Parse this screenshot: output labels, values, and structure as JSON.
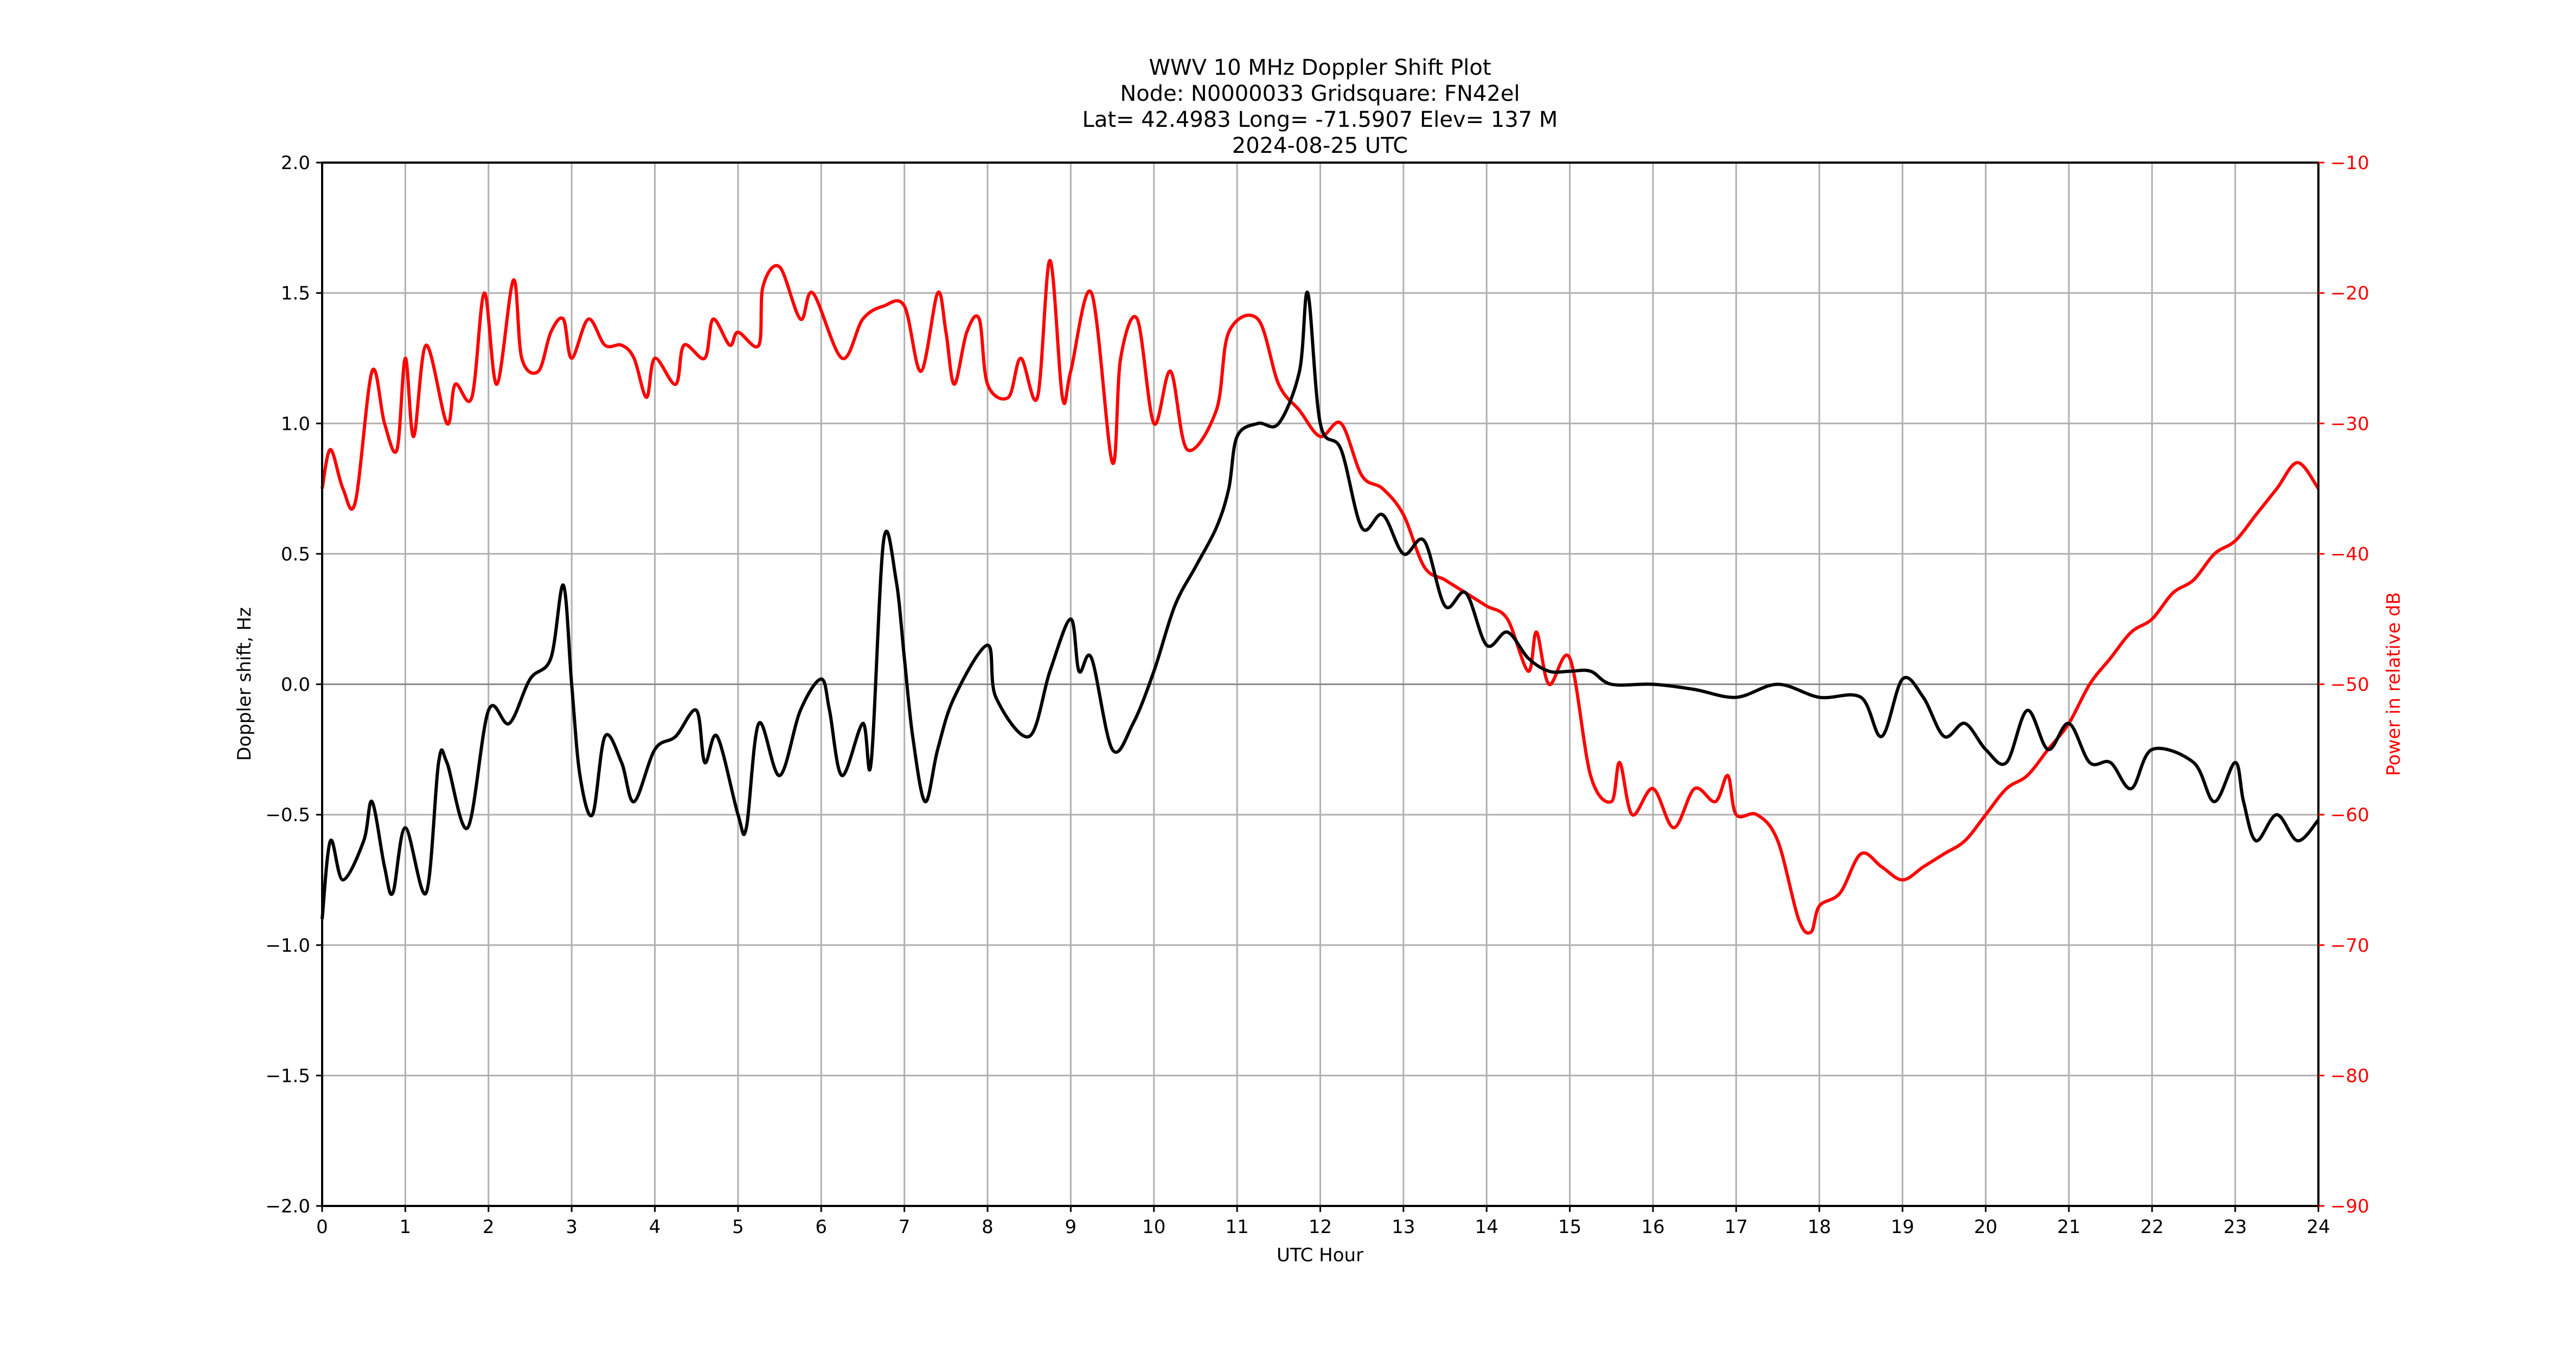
{
  "chart_data": {
    "type": "line",
    "title_lines": [
      "WWV 10 MHz Doppler Shift Plot",
      "Node:  N0000033     Gridsquare:  FN42el",
      "Lat= 42.4983    Long= -71.5907    Elev= 137 M",
      "2024-08-25  UTC"
    ],
    "xlabel": "UTC Hour",
    "ylabel": "Doppler shift, Hz",
    "y2label": "Power in relative dB",
    "xlim": [
      0,
      24
    ],
    "ylim": [
      -2.0,
      2.0
    ],
    "y2lim": [
      -90,
      -10
    ],
    "xticks": [
      "0",
      "1",
      "2",
      "3",
      "4",
      "5",
      "6",
      "7",
      "8",
      "9",
      "10",
      "11",
      "12",
      "13",
      "14",
      "15",
      "16",
      "17",
      "18",
      "19",
      "20",
      "21",
      "22",
      "23",
      "24"
    ],
    "yticks": [
      "−2.0",
      "−1.5",
      "−1.0",
      "−0.5",
      "0.0",
      "0.5",
      "1.0",
      "1.5",
      "2.0"
    ],
    "y2ticks": [
      "−90",
      "−80",
      "−70",
      "−60",
      "−50",
      "−40",
      "−30",
      "−20",
      "−10"
    ],
    "grid": true,
    "colors": {
      "doppler": "#000000",
      "power": "#ff0000",
      "grid": "#b0b0b0"
    },
    "series": [
      {
        "name": "Doppler shift",
        "axis": "left",
        "color": "#000000",
        "x": [
          0,
          0.1,
          0.25,
          0.5,
          0.6,
          0.75,
          0.85,
          1,
          1.25,
          1.4,
          1.5,
          1.75,
          2,
          2.25,
          2.5,
          2.75,
          2.9,
          3,
          3.1,
          3.25,
          3.4,
          3.6,
          3.75,
          4,
          4.25,
          4.5,
          4.6,
          4.75,
          5,
          5.1,
          5.25,
          5.5,
          5.75,
          6,
          6.1,
          6.25,
          6.5,
          6.6,
          6.75,
          6.9,
          7,
          7.1,
          7.25,
          7.4,
          7.6,
          8,
          8.1,
          8.5,
          8.75,
          9,
          9.1,
          9.25,
          9.5,
          9.75,
          10,
          10.25,
          10.5,
          10.75,
          10.9,
          11,
          11.25,
          11.5,
          11.75,
          11.85,
          12,
          12.25,
          12.5,
          12.75,
          13,
          13.25,
          13.5,
          13.75,
          14,
          14.25,
          14.5,
          14.75,
          15,
          15.25,
          15.5,
          16,
          16.5,
          17,
          17.5,
          18,
          18.5,
          18.75,
          19,
          19.25,
          19.5,
          19.75,
          20,
          20.25,
          20.5,
          20.75,
          21,
          21.25,
          21.5,
          21.75,
          22,
          22.5,
          22.75,
          23,
          23.1,
          23.25,
          23.5,
          23.75,
          24
        ],
        "y": [
          -0.9,
          -0.6,
          -0.75,
          -0.6,
          -0.45,
          -0.7,
          -0.8,
          -0.55,
          -0.8,
          -0.3,
          -0.3,
          -0.55,
          -0.1,
          -0.15,
          0.02,
          0.1,
          0.38,
          0.0,
          -0.35,
          -0.5,
          -0.2,
          -0.3,
          -0.45,
          -0.25,
          -0.2,
          -0.1,
          -0.3,
          -0.2,
          -0.5,
          -0.55,
          -0.15,
          -0.35,
          -0.1,
          0.02,
          -0.1,
          -0.35,
          -0.15,
          -0.3,
          0.55,
          0.4,
          0.1,
          -0.2,
          -0.45,
          -0.25,
          -0.05,
          0.15,
          -0.05,
          -0.2,
          0.05,
          0.25,
          0.05,
          0.1,
          -0.25,
          -0.15,
          0.05,
          0.3,
          0.45,
          0.6,
          0.75,
          0.95,
          1.0,
          1.0,
          1.2,
          1.5,
          1.0,
          0.9,
          0.6,
          0.65,
          0.5,
          0.55,
          0.3,
          0.35,
          0.15,
          0.2,
          0.1,
          0.05,
          0.05,
          0.05,
          0.0,
          0.0,
          -0.02,
          -0.05,
          0.0,
          -0.05,
          -0.05,
          -0.2,
          0.02,
          -0.05,
          -0.2,
          -0.15,
          -0.25,
          -0.3,
          -0.1,
          -0.25,
          -0.15,
          -0.3,
          -0.3,
          -0.4,
          -0.25,
          -0.3,
          -0.45,
          -0.3,
          -0.45,
          -0.6,
          -0.5,
          -0.6,
          -0.52
        ]
      },
      {
        "name": "Power",
        "axis": "right",
        "color": "#ff0000",
        "x": [
          0,
          0.1,
          0.25,
          0.4,
          0.6,
          0.75,
          0.9,
          1,
          1.1,
          1.25,
          1.5,
          1.6,
          1.8,
          1.95,
          2.1,
          2.3,
          2.4,
          2.6,
          2.75,
          2.9,
          3,
          3.2,
          3.4,
          3.6,
          3.75,
          3.9,
          4,
          4.25,
          4.35,
          4.6,
          4.7,
          4.9,
          5,
          5.25,
          5.3,
          5.5,
          5.75,
          5.9,
          6.25,
          6.5,
          6.75,
          7,
          7.2,
          7.4,
          7.5,
          7.6,
          7.75,
          7.9,
          8,
          8.25,
          8.4,
          8.6,
          8.75,
          8.9,
          9,
          9.25,
          9.5,
          9.6,
          9.8,
          10,
          10.2,
          10.4,
          10.75,
          10.9,
          11.25,
          11.5,
          11.75,
          12,
          12.25,
          12.5,
          12.75,
          13,
          13.25,
          13.5,
          13.75,
          14,
          14.25,
          14.5,
          14.6,
          14.75,
          15,
          15.25,
          15.5,
          15.6,
          15.75,
          16,
          16.25,
          16.5,
          16.75,
          16.9,
          17,
          17.25,
          17.5,
          17.75,
          17.9,
          18,
          18.25,
          18.5,
          18.75,
          19,
          19.25,
          19.5,
          19.75,
          20,
          20.25,
          20.5,
          20.75,
          21,
          21.25,
          21.5,
          21.75,
          22,
          22.25,
          22.5,
          22.75,
          23,
          23.25,
          23.5,
          23.75,
          24
        ],
        "y": [
          -35,
          -32,
          -35,
          -36,
          -26,
          -30,
          -32,
          -25,
          -31,
          -24,
          -30,
          -27,
          -28,
          -20,
          -27,
          -19,
          -25,
          -26,
          -23,
          -22,
          -25,
          -22,
          -24,
          -24,
          -25,
          -28,
          -25,
          -27,
          -24,
          -25,
          -22,
          -24,
          -23,
          -24,
          -19.5,
          -18,
          -22,
          -20,
          -25,
          -22,
          -21,
          -21,
          -26,
          -20,
          -23,
          -27,
          -23,
          -22,
          -27,
          -28,
          -25,
          -28,
          -17.5,
          -28,
          -26,
          -20,
          -33,
          -25,
          -22,
          -30,
          -26,
          -32,
          -29,
          -23,
          -22,
          -27,
          -29,
          -31,
          -30,
          -34,
          -35,
          -37,
          -41,
          -42,
          -43,
          -44,
          -45,
          -49,
          -46,
          -50,
          -48,
          -57,
          -59,
          -56,
          -60,
          -58,
          -61,
          -58,
          -59,
          -57,
          -60,
          -60,
          -62,
          -68,
          -69,
          -67,
          -66,
          -63,
          -64,
          -65,
          -64,
          -63,
          -62,
          -60,
          -58,
          -57,
          -55,
          -53,
          -50,
          -48,
          -46,
          -45,
          -43,
          -42,
          -40,
          -39,
          -37,
          -35,
          -33,
          -35
        ]
      }
    ]
  }
}
